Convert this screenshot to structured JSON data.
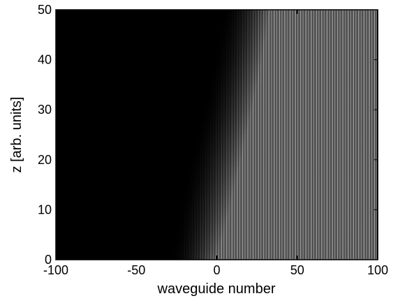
{
  "chart_data": {
    "type": "heatmap",
    "title": "",
    "xlabel": "waveguide number",
    "ylabel": "z [arb. units]",
    "xlim": [
      -100,
      100
    ],
    "ylim": [
      0,
      50
    ],
    "x_ticks": [
      -100,
      -50,
      0,
      50,
      100
    ],
    "y_ticks": [
      0,
      10,
      20,
      30,
      40,
      50
    ],
    "x_tick_labels": [
      "-100",
      "-50",
      "0",
      "50",
      "100"
    ],
    "y_tick_labels": [
      "0",
      "10",
      "20",
      "30",
      "40",
      "50"
    ],
    "grid": false,
    "colormap": "grayscale (black = 0, white = max)",
    "waveguide_index_range": [
      -100,
      100
    ],
    "intensity_front": [
      {
        "z": 0,
        "onset_waveguide": -30,
        "saturation_waveguide": 0
      },
      {
        "z": 10,
        "onset_waveguide": -25,
        "saturation_waveguide": 8
      },
      {
        "z": 20,
        "onset_waveguide": -18,
        "saturation_waveguide": 15
      },
      {
        "z": 30,
        "onset_waveguide": -10,
        "saturation_waveguide": 22
      },
      {
        "z": 40,
        "onset_waveguide": -3,
        "saturation_waveguide": 28
      },
      {
        "z": 50,
        "onset_waveguide": 3,
        "saturation_waveguide": 33
      }
    ],
    "background_color": "#000000",
    "stripe_color": "#ffffff"
  }
}
